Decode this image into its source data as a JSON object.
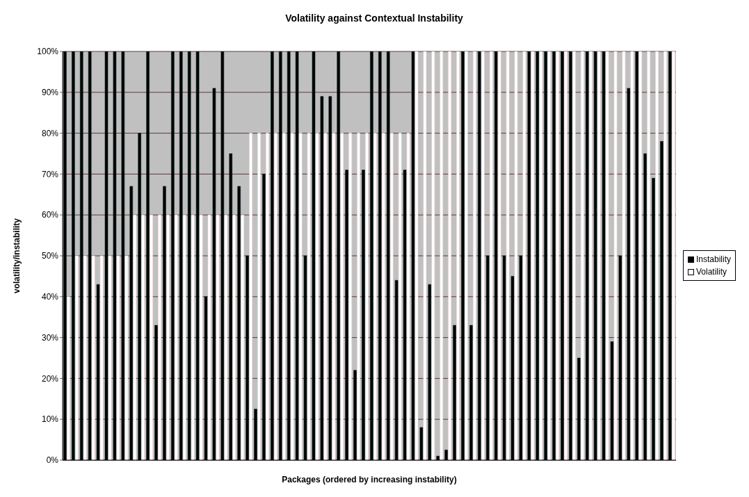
{
  "chart_data": {
    "type": "bar",
    "title": "Volatility against Contextual Instability",
    "xlabel": "Packages (ordered by increasing instability)",
    "ylabel": "volatility/instability",
    "categories": [
      null,
      null,
      null,
      null,
      null,
      null,
      null,
      null,
      null,
      null,
      null,
      null,
      null,
      null,
      null,
      null,
      null,
      null,
      null,
      null,
      null,
      null,
      null,
      null,
      null,
      null,
      null,
      null,
      null,
      null,
      null,
      null,
      null,
      null,
      null,
      null,
      null,
      null,
      null,
      null,
      null,
      null,
      null,
      null,
      null,
      null,
      null,
      null,
      null,
      null,
      null,
      null,
      null,
      null,
      null,
      null,
      null,
      null,
      null,
      null,
      null,
      null,
      null,
      null,
      null,
      null,
      null,
      null,
      null,
      null,
      null,
      null,
      null,
      null
    ],
    "series": [
      {
        "name": "Instability",
        "color": "#000000",
        "values": [
          100,
          100,
          100,
          100,
          43,
          100,
          100,
          100,
          67,
          80,
          100,
          33,
          67,
          100,
          100,
          100,
          100,
          40,
          91,
          100,
          75,
          67,
          50,
          12.5,
          70,
          100,
          100,
          100,
          100,
          50,
          100,
          89,
          89,
          100,
          71,
          22,
          71,
          100,
          100,
          100,
          44,
          71,
          100,
          8,
          43,
          1,
          2.5,
          33,
          100,
          33,
          100,
          50,
          100,
          50,
          45,
          50,
          100,
          100,
          100,
          100,
          100,
          100,
          25,
          100,
          100,
          100,
          29,
          50,
          91,
          100,
          75,
          69,
          78,
          100
        ]
      },
      {
        "name": "Volatility",
        "color": "#ffffff",
        "values": [
          40,
          50,
          50,
          50,
          50,
          50,
          50,
          50,
          60,
          60,
          60,
          60,
          60,
          60,
          60,
          60,
          60,
          60,
          60,
          60,
          60,
          60,
          80,
          80,
          80,
          80,
          80,
          80,
          80,
          80,
          80,
          80,
          80,
          80,
          80,
          80,
          80,
          80,
          80,
          80,
          80,
          80,
          100,
          100,
          100,
          100,
          100,
          100,
          100,
          100,
          100,
          100,
          100,
          100,
          100,
          100,
          100,
          100,
          100,
          100,
          100,
          100,
          100,
          100,
          100,
          100,
          100,
          100,
          100,
          100,
          100,
          100,
          100,
          100
        ]
      }
    ],
    "ylim": [
      0,
      100
    ],
    "yticks": [
      {
        "value": 0,
        "label": "0%"
      },
      {
        "value": 10,
        "label": "10%"
      },
      {
        "value": 20,
        "label": "20%"
      },
      {
        "value": 30,
        "label": "30%"
      },
      {
        "value": 40,
        "label": "40%"
      },
      {
        "value": 50,
        "label": "50%"
      },
      {
        "value": 60,
        "label": "60%"
      },
      {
        "value": 70,
        "label": "70%"
      },
      {
        "value": 80,
        "label": "80%"
      },
      {
        "value": 90,
        "label": "90%"
      },
      {
        "value": 100,
        "label": "100%"
      }
    ],
    "grid": "y",
    "legend": "right"
  }
}
